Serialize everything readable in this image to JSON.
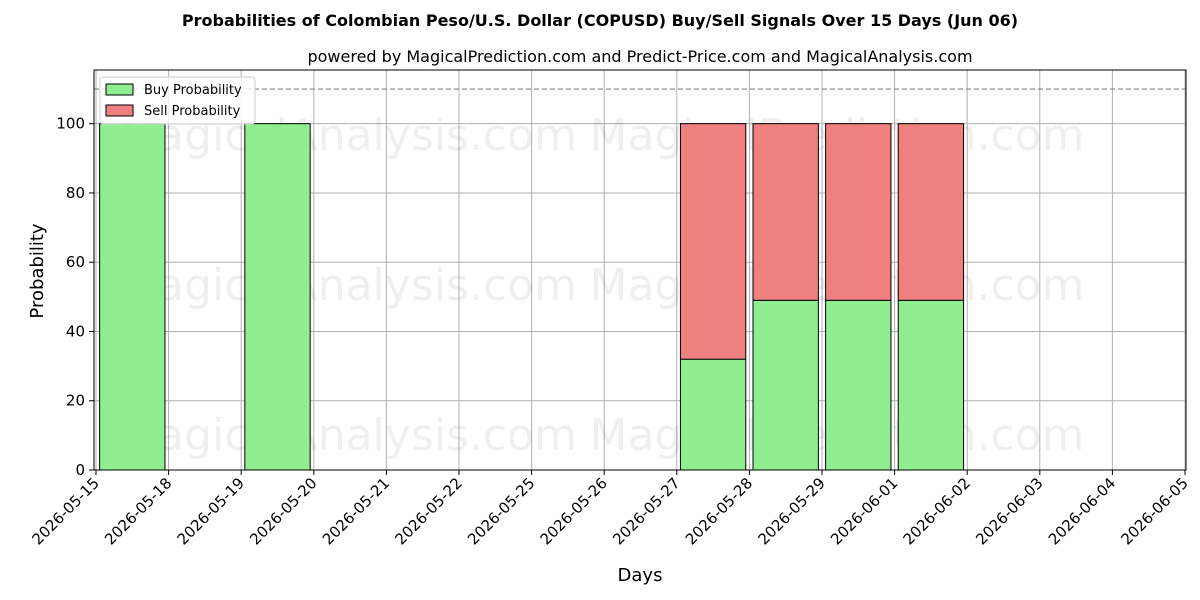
{
  "chart_data": {
    "type": "bar",
    "stacked": true,
    "title": "Probabilities of Colombian Peso/U.S. Dollar (COPUSD) Buy/Sell Signals Over 15 Days (Jun 06)",
    "subtitle": "powered by MagicalPrediction.com and Predict-Price.com and MagicalAnalysis.com",
    "xlabel": "Days",
    "ylabel": "Probability",
    "ylim": [
      0,
      115.5
    ],
    "yticks": [
      0,
      20,
      40,
      60,
      80,
      100
    ],
    "threshold_line": 110,
    "grid": true,
    "legend_position": "top-left",
    "x_ticks": [
      "2026-05-15",
      "2026-05-18",
      "2026-05-19",
      "2026-05-20",
      "2026-05-21",
      "2026-05-22",
      "2026-05-25",
      "2026-05-26",
      "2026-05-27",
      "2026-05-28",
      "2026-05-29",
      "2026-06-01",
      "2026-06-02",
      "2026-06-03",
      "2026-06-04",
      "2026-06-05"
    ],
    "categories": [
      "2026-05-18",
      "2026-05-20",
      "2026-05-28",
      "2026-05-29",
      "2026-06-01",
      "2026-06-02"
    ],
    "bar_positions": [
      0.5,
      2.5,
      8.5,
      9.5,
      10.5,
      11.5
    ],
    "series": [
      {
        "name": "Buy Probability",
        "color": "#90ee90",
        "values": [
          100,
          100,
          32,
          49,
          49,
          49
        ]
      },
      {
        "name": "Sell Probability",
        "color": "#f08080",
        "values": [
          0,
          0,
          68,
          51,
          51,
          51
        ]
      }
    ]
  },
  "watermarks": [
    "MagicalAnalysis.com",
    "MagicalPrediction.com",
    "MagicalAnalysis.com",
    "MagicalPrediction.com",
    "MagicalAnalysis.com",
    "MagicalPrediction.com"
  ]
}
